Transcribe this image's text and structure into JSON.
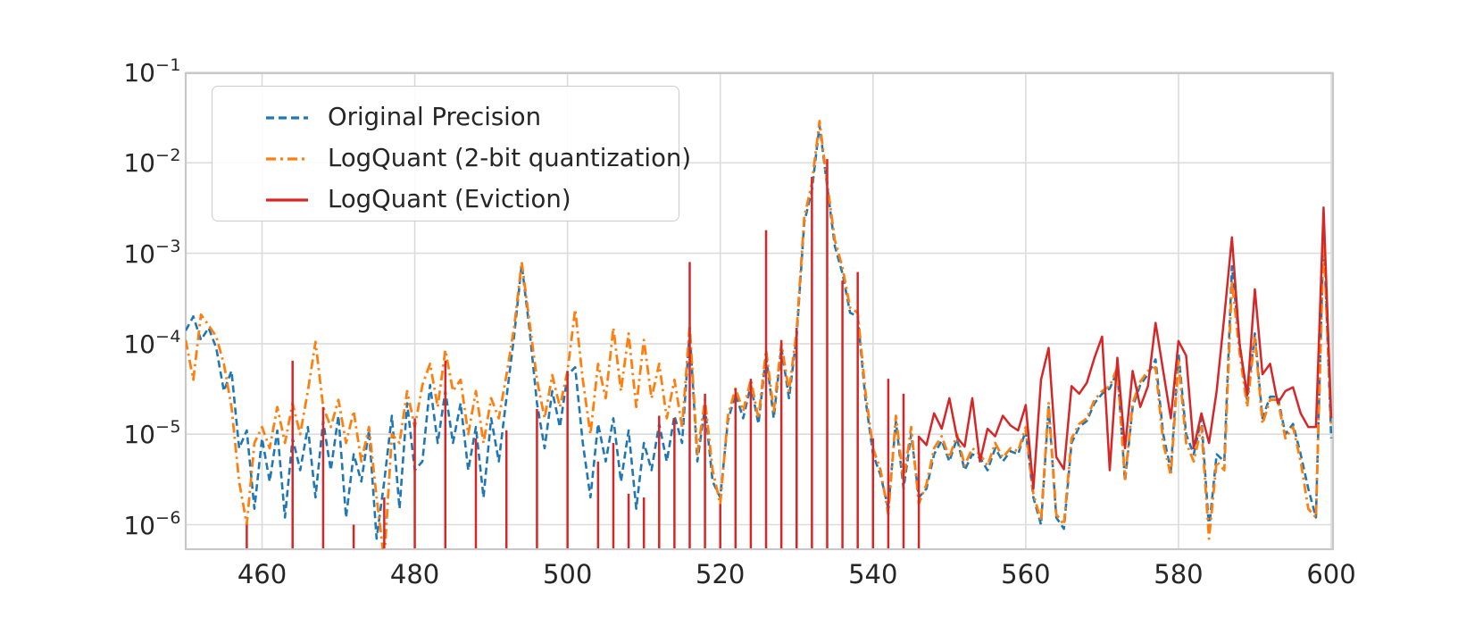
{
  "chart_data": {
    "type": "line",
    "title": "",
    "xlabel": "",
    "ylabel": "",
    "y_scale": "log",
    "x_range": [
      450,
      600.3
    ],
    "y_range": [
      5e-07,
      0.1
    ],
    "grid": true,
    "legend_position": "upper-left",
    "x_ticks": [
      {
        "value": 460,
        "label": "460"
      },
      {
        "value": 480,
        "label": "480"
      },
      {
        "value": 500,
        "label": "500"
      },
      {
        "value": 520,
        "label": "520"
      },
      {
        "value": 540,
        "label": "540"
      },
      {
        "value": 560,
        "label": "560"
      },
      {
        "value": 580,
        "label": "580"
      },
      {
        "value": 600,
        "label": "600"
      }
    ],
    "y_ticks": [
      {
        "exp": -1,
        "base": "10",
        "exp_label": "−1"
      },
      {
        "exp": -2,
        "base": "10",
        "exp_label": "−2"
      },
      {
        "exp": -3,
        "base": "10",
        "exp_label": "−3"
      },
      {
        "exp": -4,
        "base": "10",
        "exp_label": "−4"
      },
      {
        "exp": -5,
        "base": "10",
        "exp_label": "−5"
      },
      {
        "exp": -6,
        "base": "10",
        "exp_label": "−6"
      }
    ],
    "colors": {
      "blue": "#1f77b4",
      "orange": "#ff7f0e",
      "red": "#d62728",
      "grid": "#dcdcdc",
      "spine": "#c8c8c8",
      "text": "#262626"
    },
    "x_start": 450,
    "x_step": 1,
    "series": [
      {
        "name": "Original Precision",
        "color": "#1f77b4",
        "style": "dashed",
        "y": [
          0.00014,
          0.0002,
          0.00011,
          0.00015,
          9e-05,
          3e-05,
          5e-05,
          7e-06,
          1.1e-05,
          1.5e-06,
          9e-06,
          3e-06,
          1.1e-05,
          1.2e-06,
          9e-06,
          4e-06,
          1.2e-05,
          2e-06,
          1.4e-05,
          4e-06,
          1.6e-05,
          1.2e-06,
          6e-06,
          3e-06,
          1.1e-05,
          7e-07,
          3e-06,
          1.6e-05,
          1.5e-06,
          2.2e-05,
          4e-06,
          5e-06,
          3.5e-05,
          8e-06,
          3e-05,
          8e-06,
          2.2e-05,
          4e-06,
          1.2e-05,
          2e-06,
          1.5e-05,
          5e-06,
          2.5e-05,
          0.00012,
          0.00075,
          0.00015,
          2.2e-05,
          7e-06,
          3e-05,
          1.2e-05,
          4.5e-05,
          5.5e-05,
          8e-06,
          2e-06,
          1.3e-05,
          5e-06,
          1.5e-05,
          3e-06,
          1.1e-05,
          1.5e-06,
          8e-06,
          4e-06,
          1.3e-05,
          5e-06,
          1.6e-05,
          8e-06,
          0.00014,
          5e-06,
          2e-05,
          3e-06,
          2e-06,
          1.4e-05,
          2.8e-05,
          1.5e-05,
          3.5e-05,
          1.3e-05,
          7.5e-05,
          1.5e-05,
          9e-05,
          2.5e-05,
          0.00012,
          0.0022,
          0.005,
          0.026,
          0.0055,
          0.0012,
          0.0006,
          0.00022,
          0.0002,
          2.5e-05,
          6e-06,
          3.5e-06,
          1.5e-06,
          1.4e-05,
          2.5e-06,
          1e-05,
          2e-06,
          2.5e-06,
          6e-06,
          8.5e-06,
          5e-06,
          9e-06,
          4e-06,
          6e-06,
          5.5e-06,
          4e-06,
          7e-06,
          5e-06,
          6.5e-06,
          6e-06,
          1.1e-05,
          2e-06,
          1e-06,
          2e-05,
          1.2e-06,
          9e-07,
          8e-06,
          1.2e-05,
          1.4e-05,
          2.2e-05,
          2.8e-05,
          3.2e-05,
          5e-05,
          3e-06,
          2e-05,
          3.5e-05,
          4.6e-05,
          6.7e-05,
          1e-05,
          4e-06,
          7.9e-05,
          1e-05,
          6e-06,
          1.5e-05,
          9e-07,
          6e-06,
          5e-06,
          0.00072,
          0.0001,
          2.4e-05,
          0.00013,
          1.5e-05,
          2.6e-05,
          2.6e-05,
          1e-05,
          1.3e-05,
          6e-06,
          2.5e-06,
          1.2e-06,
          0.0017,
          9e-06
        ]
      },
      {
        "name": "LogQuant (2-bit quantization)",
        "color": "#ff7f0e",
        "style": "dashdot",
        "y": [
          0.00011,
          4e-05,
          0.00021,
          0.00016,
          0.00012,
          6e-05,
          2e-05,
          3e-06,
          1e-06,
          8e-06,
          1.2e-05,
          7e-06,
          2e-05,
          8e-06,
          2.2e-05,
          1e-05,
          3e-05,
          0.000105,
          2e-05,
          1.2e-05,
          2.4e-05,
          8e-06,
          1.8e-05,
          5e-06,
          1.2e-05,
          2e-06,
          4e-07,
          1e-05,
          8e-06,
          3e-05,
          1.2e-05,
          3.5e-05,
          6e-05,
          2e-05,
          8.5e-05,
          3e-05,
          4e-05,
          1e-05,
          3e-05,
          8e-06,
          2.5e-05,
          1.5e-05,
          4.5e-05,
          0.00015,
          0.0008,
          0.00018,
          4e-05,
          1.5e-05,
          4.5e-05,
          2e-05,
          5e-05,
          0.00024,
          4e-05,
          1e-05,
          6e-05,
          2.5e-05,
          0.00015,
          3e-05,
          0.00013,
          2e-05,
          0.00011,
          2.5e-05,
          6e-05,
          1.5e-05,
          4e-05,
          1.2e-05,
          0.00016,
          6e-06,
          2.4e-05,
          4e-06,
          1.7e-06,
          1.6e-05,
          3.2e-05,
          1.8e-05,
          4e-05,
          1.5e-05,
          8.5e-05,
          1.8e-05,
          0.0001,
          3e-05,
          0.00014,
          0.0025,
          0.006,
          0.029,
          0.006,
          0.0014,
          0.0007,
          0.00025,
          0.00022,
          3e-05,
          7e-06,
          4e-06,
          1.3e-06,
          1.6e-05,
          3e-06,
          1.2e-05,
          1.7e-06,
          2.8e-06,
          7e-06,
          9.5e-06,
          5.5e-06,
          1e-05,
          4.5e-06,
          7e-06,
          6e-06,
          4.5e-06,
          8e-06,
          5.5e-06,
          7e-06,
          6.5e-06,
          1.2e-05,
          2.2e-06,
          1.1e-06,
          2.2e-05,
          1.3e-06,
          1e-06,
          9e-06,
          1.3e-05,
          1.5e-05,
          2.4e-05,
          3e-05,
          3.4e-05,
          5.5e-05,
          3.2e-06,
          2.2e-05,
          3.8e-05,
          5e-05,
          5.5e-05,
          8e-06,
          3.5e-06,
          6.5e-05,
          8e-06,
          5e-06,
          1.2e-05,
          7e-07,
          5e-06,
          4e-06,
          0.0005,
          8e-05,
          2e-05,
          0.00012,
          1.3e-05,
          2.4e-05,
          2.4e-05,
          9e-06,
          1.2e-05,
          5e-06,
          1.5e-06,
          1.2e-06,
          0.0014,
          1.2e-05
        ]
      },
      {
        "name": "LogQuant (Eviction)",
        "color": "#d62728",
        "style": "solid",
        "eviction_spikes": [
          [
            458,
            1e-06
          ],
          [
            464,
            6.5e-05
          ],
          [
            468,
            2e-05
          ],
          [
            472,
            1e-06
          ],
          [
            476,
            2e-06
          ],
          [
            480,
            1.5e-05
          ],
          [
            484,
            6.5e-05
          ],
          [
            488,
            9e-06
          ],
          [
            492,
            1.1e-05
          ],
          [
            496,
            1.9e-05
          ],
          [
            500,
            5e-05
          ],
          [
            504,
            5e-06
          ],
          [
            506,
            8e-06
          ],
          [
            508,
            2.2e-06
          ],
          [
            510,
            2e-06
          ],
          [
            512,
            1.6e-05
          ],
          [
            514,
            1.5e-05
          ],
          [
            516,
            0.0008
          ],
          [
            518,
            2.8e-05
          ],
          [
            520,
            1.7e-06
          ],
          [
            522,
            3.2e-05
          ],
          [
            524,
            4.1e-05
          ],
          [
            526,
            0.0018
          ],
          [
            528,
            0.00011
          ],
          [
            530,
            0.00015
          ],
          [
            532,
            0.007
          ],
          [
            534,
            0.011
          ],
          [
            536,
            0.0005
          ],
          [
            538,
            0.00062
          ],
          [
            540,
            9e-06
          ],
          [
            542,
            4.1e-05
          ],
          [
            544,
            2.8e-05
          ]
        ],
        "line_x_start": 546,
        "line_y": [
          9.4e-06,
          7.6e-06,
          1.7e-05,
          1.15e-05,
          2.5e-05,
          9.2e-06,
          7.3e-06,
          2.5e-05,
          5e-06,
          1.15e-05,
          9.5e-06,
          1.6e-05,
          1.25e-05,
          1.1e-05,
          2.1e-05,
          2.5e-06,
          4e-05,
          9e-05,
          5.6e-06,
          4.1e-06,
          3.4e-05,
          2.8e-05,
          3.7e-05,
          7e-05,
          0.00012,
          4e-06,
          7e-05,
          7e-06,
          5e-05,
          2e-05,
          3.4e-05,
          0.00017,
          5e-05,
          1.5e-05,
          0.000107,
          7.4e-05,
          7e-06,
          1.7e-05,
          8e-06,
          3e-05,
          0.0002,
          0.0015,
          0.0001,
          2.7e-05,
          0.0004,
          4.6e-05,
          6e-05,
          2.2e-05,
          3e-05,
          3.3e-05,
          1.7e-05,
          1.2e-05,
          1.2e-05,
          0.0032,
          1.5e-05
        ]
      }
    ]
  }
}
